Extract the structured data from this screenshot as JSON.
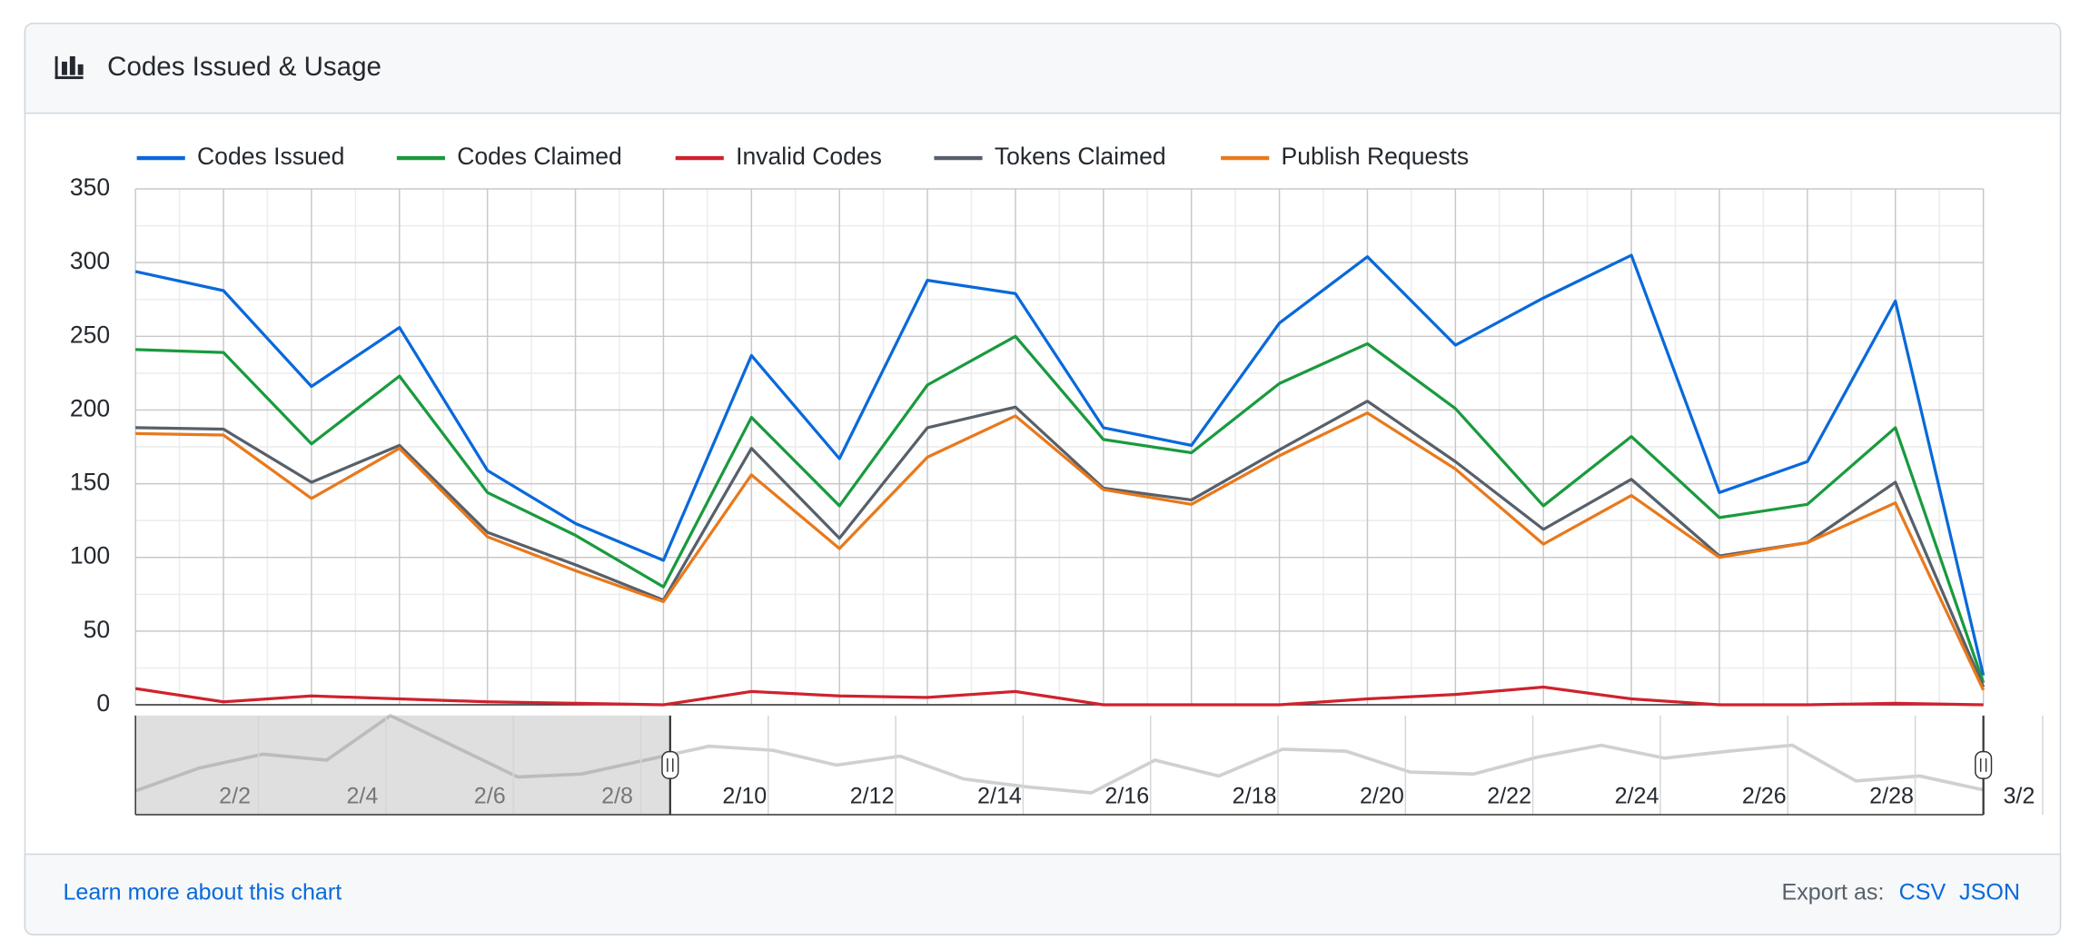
{
  "header": {
    "title": "Codes Issued & Usage"
  },
  "footer": {
    "learn_more": "Learn more about this chart",
    "export_label": "Export as:",
    "export_csv": "CSV",
    "export_json": "JSON"
  },
  "chart_data": {
    "type": "line",
    "categories": [
      null,
      null,
      null,
      null,
      null,
      null,
      null,
      null,
      null,
      null,
      null,
      null,
      null,
      null,
      null,
      null,
      null,
      null,
      null,
      null,
      null,
      null
    ],
    "ylim": [
      0,
      350
    ],
    "yticks": [
      0,
      50,
      100,
      150,
      200,
      250,
      300,
      350
    ],
    "grid": true,
    "legend": "top",
    "series": [
      {
        "name": "Codes Issued",
        "color": "#0969da",
        "values": [
          294,
          281,
          216,
          256,
          159,
          123,
          98,
          237,
          167,
          288,
          279,
          188,
          176,
          259,
          304,
          244,
          276,
          305,
          144,
          165,
          274,
          20
        ]
      },
      {
        "name": "Codes Claimed",
        "color": "#1a9a3e",
        "values": [
          241,
          239,
          177,
          223,
          144,
          115,
          80,
          195,
          135,
          217,
          250,
          180,
          171,
          218,
          245,
          201,
          135,
          182,
          127,
          136,
          188,
          15
        ]
      },
      {
        "name": "Invalid Codes",
        "color": "#cf222e",
        "values": [
          11,
          2,
          6,
          4,
          2,
          1,
          0,
          9,
          6,
          5,
          9,
          0,
          0,
          0,
          4,
          7,
          12,
          4,
          0,
          0,
          1,
          0
        ]
      },
      {
        "name": "Tokens Claimed",
        "color": "#57606a",
        "values": [
          188,
          187,
          151,
          176,
          117,
          95,
          71,
          174,
          113,
          188,
          202,
          147,
          139,
          173,
          206,
          165,
          119,
          153,
          101,
          110,
          151,
          12
        ]
      },
      {
        "name": "Publish Requests",
        "color": "#e8791c",
        "values": [
          184,
          183,
          140,
          174,
          114,
          91,
          70,
          156,
          106,
          168,
          196,
          146,
          136,
          169,
          198,
          160,
          109,
          142,
          100,
          110,
          137,
          10
        ]
      }
    ],
    "navigator": {
      "categories": [
        null,
        "2/2",
        null,
        "2/4",
        null,
        "2/6",
        null,
        "2/8",
        null,
        "2/10",
        null,
        "2/12",
        null,
        "2/14",
        null,
        "2/16",
        null,
        "2/18",
        null,
        "2/20",
        null,
        "2/22",
        null,
        "2/24",
        null,
        "2/26",
        null,
        "2/28",
        null,
        "3/2"
      ],
      "values": [
        24,
        47,
        61,
        55,
        100,
        69,
        38,
        41,
        55,
        69,
        65,
        50,
        59,
        36,
        28,
        22,
        55,
        39,
        66,
        64,
        43,
        41,
        58,
        70,
        57,
        64,
        70,
        34,
        39,
        25
      ],
      "ylim": [
        0,
        100
      ],
      "color": "#d0d0d0"
    }
  }
}
